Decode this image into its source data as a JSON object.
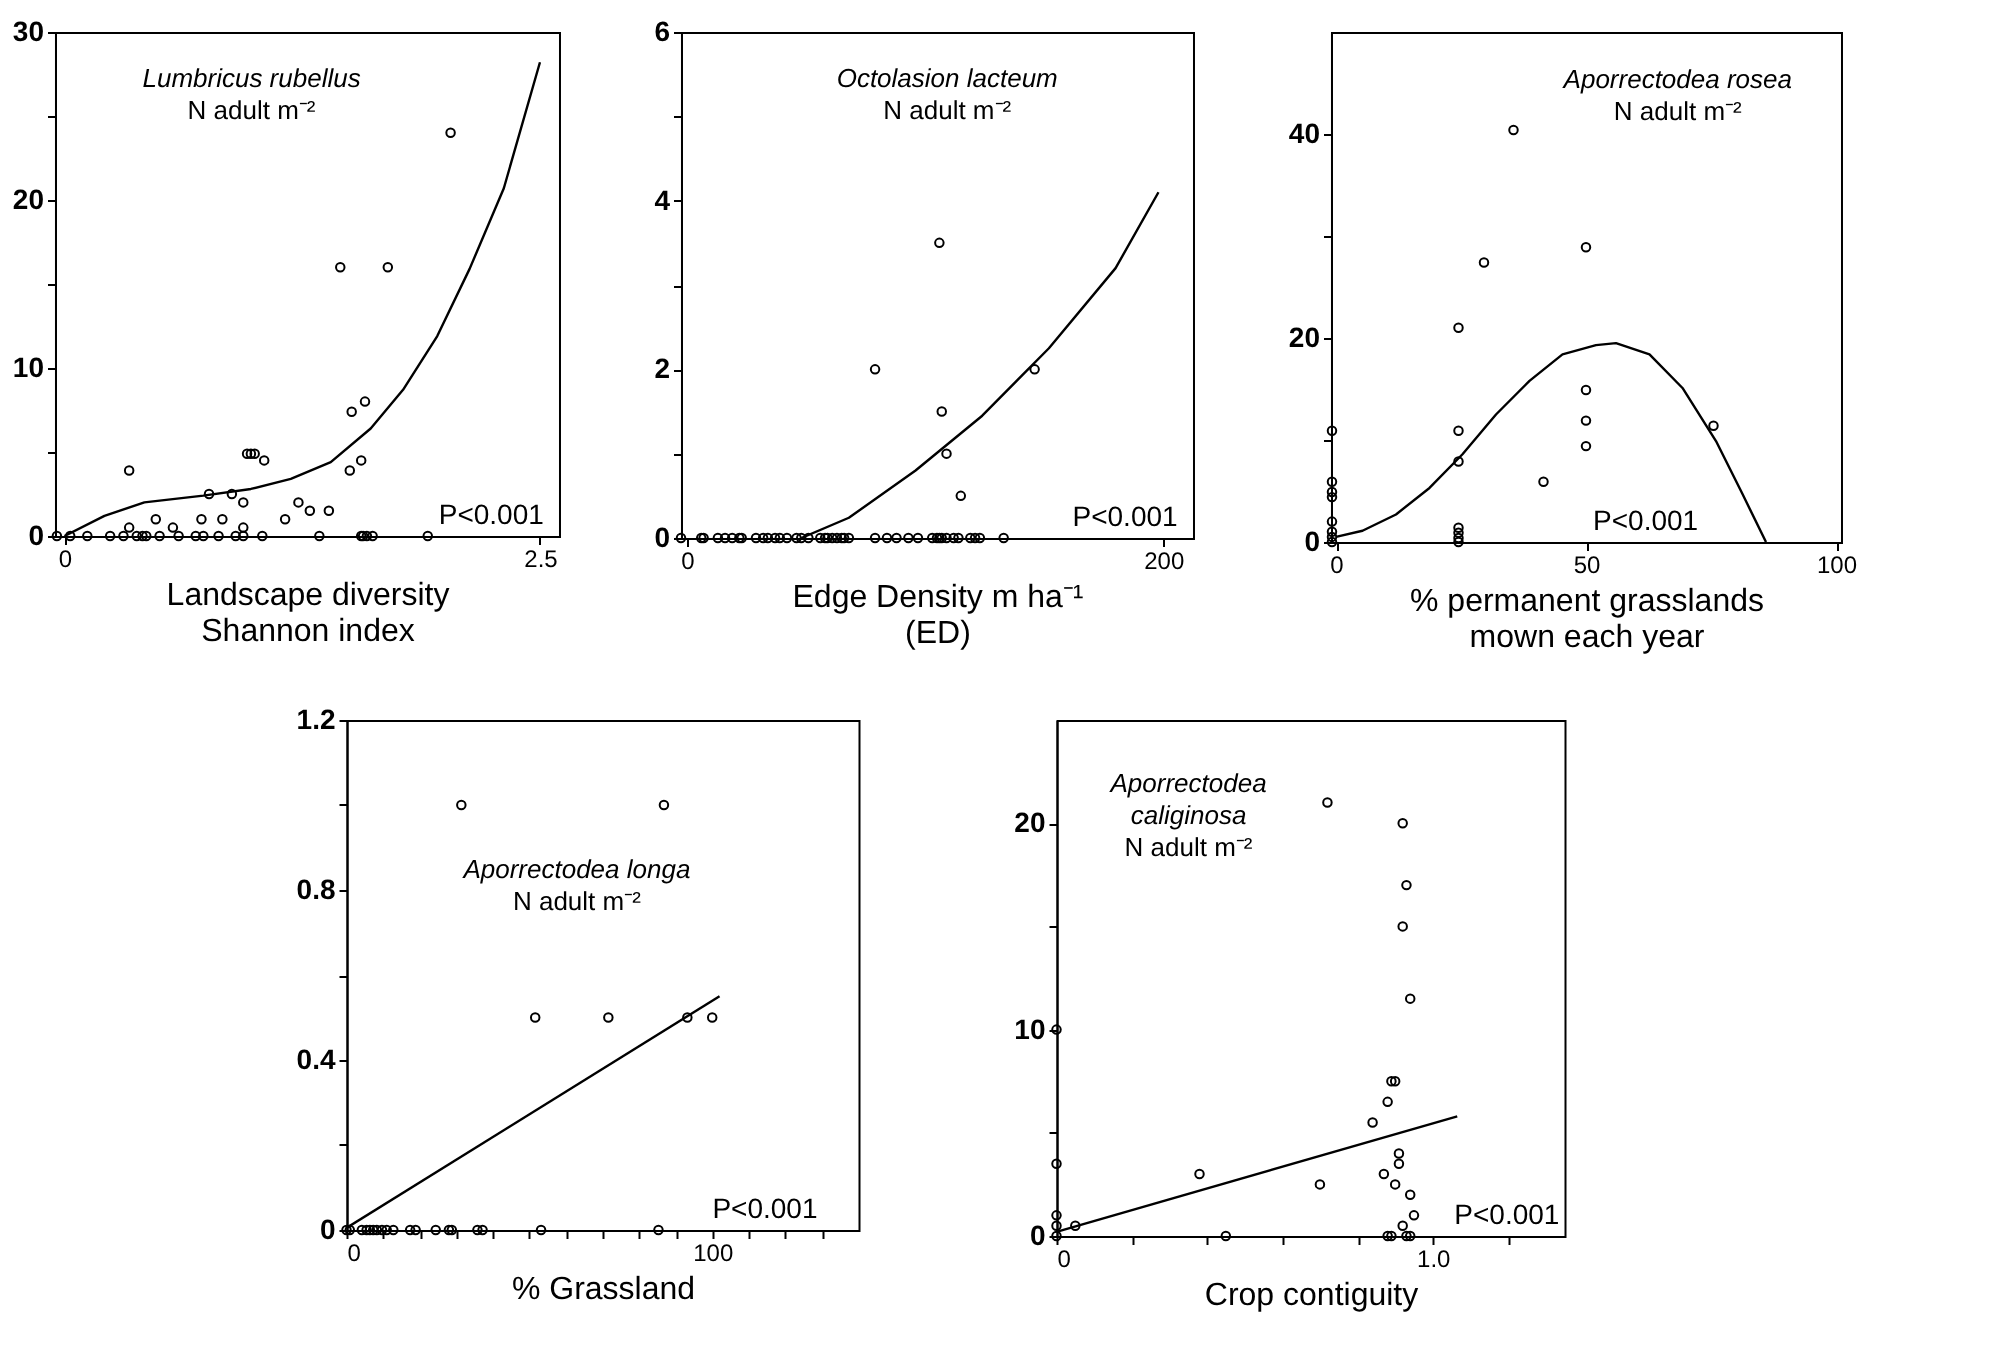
{
  "chart_data": [
    {
      "type": "scatter",
      "xlabel": "Landscape diversity\nShannon index",
      "xlim": [
        -0.05,
        2.6
      ],
      "xticks": [
        0,
        2.5
      ],
      "ylim": [
        0,
        30
      ],
      "yticks": [
        0,
        {
          "value": 5,
          "label": null
        },
        10,
        {
          "value": 15,
          "label": null
        },
        20,
        {
          "value": 25,
          "label": null
        },
        30
      ],
      "grid": false,
      "marker": "circle",
      "line_style": "solid",
      "annotations": [
        "Lumbricus rubellus",
        "N adult m⁻²",
        "P<0.001"
      ],
      "series": [
        {
          "color": "#000000",
          "x": [
            2.03,
            1.45,
            1.7,
            1.51,
            1.58,
            1.5,
            1.56,
            0.34,
            0.96,
            0.98,
            1.0,
            1.05,
            0.76,
            0.88,
            0.94,
            1.23,
            1.29,
            1.39,
            1.16,
            0.48,
            0.72,
            0.83,
            0.34,
            0.57,
            0.94,
            -0.04,
            0.03,
            0.12,
            0.24,
            0.31,
            0.38,
            0.41,
            0.43,
            0.5,
            0.6,
            0.69,
            0.73,
            0.81,
            0.9,
            0.94,
            1.04,
            1.34,
            1.56,
            1.57,
            1.59,
            1.62,
            1.91
          ],
          "values": [
            24,
            16,
            16,
            7.4,
            8,
            3.9,
            4.5,
            3.9,
            4.9,
            4.9,
            4.9,
            4.5,
            2.5,
            2.5,
            2,
            2,
            1.5,
            1.5,
            1,
            1,
            1,
            1,
            0.5,
            0.5,
            0.5,
            0,
            0,
            0,
            0,
            0,
            0,
            0,
            0,
            0,
            0,
            0,
            0,
            0,
            0,
            0,
            0,
            0,
            0,
            0,
            0,
            0,
            0
          ]
        },
        {
          "type": "line",
          "marker": "none",
          "color": "#000000",
          "x": [
            0,
            0.21,
            0.42,
            0.73,
            0.98,
            1.19,
            1.4,
            1.61,
            1.78,
            1.96,
            2.13,
            2.31,
            2.5
          ],
          "values": [
            0,
            1.2,
            2.0,
            2.4,
            2.8,
            3.4,
            4.4,
            6.4,
            8.7,
            11.9,
            15.9,
            20.7,
            28.2
          ]
        }
      ]
    },
    {
      "type": "scatter",
      "xlabel": "Edge Density m ha⁻¹\n(ED)",
      "xlim": [
        -2.5,
        212.5
      ],
      "xticks": [
        0,
        200
      ],
      "ylim": [
        0,
        6
      ],
      "yticks": [
        0,
        {
          "value": 1,
          "label": null
        },
        2,
        {
          "value": 3,
          "label": null
        },
        4,
        {
          "value": 5,
          "label": null
        },
        6
      ],
      "grid": false,
      "marker": "circle",
      "line_style": "solid",
      "annotations": [
        "Octolasion lacteum",
        "N adult m⁻²",
        "P<0.001"
      ],
      "series": [
        {
          "color": "#000000",
          "x": [
            106,
            79,
            146,
            107,
            109,
            115,
            -2.5,
            6,
            7,
            13,
            16,
            19,
            22,
            23,
            29,
            32,
            34,
            37,
            39,
            42,
            46,
            48,
            51,
            56,
            58,
            59,
            61,
            63,
            65,
            66,
            68,
            79,
            84,
            88,
            93,
            97,
            103,
            105,
            106,
            107,
            109,
            112,
            114,
            119,
            121,
            123,
            133
          ],
          "values": [
            3.5,
            2,
            2,
            1.5,
            1,
            0.5,
            0,
            0,
            0,
            0,
            0,
            0,
            0,
            0,
            0,
            0,
            0,
            0,
            0,
            0,
            0,
            0,
            0,
            0,
            0,
            0,
            0,
            0,
            0,
            0,
            0,
            0,
            0,
            0,
            0,
            0,
            0,
            0,
            0,
            0,
            0,
            0,
            0,
            0,
            0,
            0,
            0
          ]
        },
        {
          "type": "line",
          "marker": "none",
          "color": "#000000",
          "x": [
            48,
            68,
            96,
            124,
            152,
            180,
            198
          ],
          "values": [
            0,
            0.24,
            0.8,
            1.45,
            2.25,
            3.2,
            4.1
          ]
        }
      ]
    },
    {
      "type": "scatter",
      "xlabel": "% permanent grasslands\nmown each year",
      "xlim": [
        -1,
        101
      ],
      "xticks": [
        0,
        50,
        100
      ],
      "ylim": [
        0,
        50
      ],
      "yticks": [
        0,
        {
          "value": 10,
          "label": null
        },
        20,
        {
          "value": 30,
          "label": null
        },
        40
      ],
      "grid": false,
      "marker": "circle",
      "line_style": "solid",
      "annotations": [
        "Aporrectodea rosea",
        "N adult m⁻²",
        "P<0.001"
      ],
      "series": [
        {
          "color": "#000000",
          "x": [
            35.5,
            29.6,
            50,
            24.5,
            24.5,
            24.5,
            50,
            50,
            50,
            41.5,
            75.5,
            -0.8,
            -0.8,
            -0.8,
            -0.8,
            -0.8,
            -0.8,
            -0.8,
            -0.8,
            24.5,
            24.5,
            24.5,
            24.5
          ],
          "values": [
            40.4,
            27.4,
            28.9,
            21,
            10.9,
            7.9,
            14.9,
            11.9,
            9.4,
            5.9,
            11.4,
            10.9,
            5.9,
            4.9,
            4.4,
            2,
            1,
            0.5,
            0,
            1.4,
            0.9,
            0.4,
            0
          ]
        },
        {
          "type": "line",
          "marker": "none",
          "color": "#000000",
          "x": [
            0,
            5.3,
            12,
            18.7,
            25.3,
            32,
            38.7,
            45.3,
            52,
            56,
            62.7,
            69.3,
            76,
            81.3,
            86
          ],
          "values": [
            0.5,
            1.1,
            2.7,
            5.3,
            8.6,
            12.5,
            15.8,
            18.4,
            19.3,
            19.5,
            18.4,
            15.1,
            9.9,
            4.7,
            0
          ]
        }
      ]
    },
    {
      "type": "scatter",
      "xlabel": "% Grassland",
      "xlim": [
        0,
        140
      ],
      "xticks": [
        0,
        {
          "value": 10,
          "label": null
        },
        {
          "value": 20,
          "label": null
        },
        {
          "value": 30,
          "label": null
        },
        {
          "value": 40,
          "label": null
        },
        {
          "value": 50,
          "label": null
        },
        {
          "value": 60,
          "label": null
        },
        {
          "value": 70,
          "label": null
        },
        {
          "value": 80,
          "label": null
        },
        {
          "value": 90,
          "label": null
        },
        100,
        {
          "value": 110,
          "label": null
        },
        {
          "value": 120,
          "label": null
        },
        {
          "value": 130,
          "label": null
        }
      ],
      "ylim": [
        0,
        1.2
      ],
      "yticks": [
        0,
        {
          "value": 0.2,
          "label": null
        },
        0.4,
        {
          "value": 0.6,
          "label": null
        },
        0.8,
        {
          "value": 1.0,
          "label": null
        },
        1.2
      ],
      "grid": false,
      "marker": "circle",
      "line_style": "solid",
      "annotations": [
        "Aporrectodea longa",
        "N adult m⁻²",
        "P<0.001"
      ],
      "series": [
        {
          "color": "#000000",
          "x": [
            31.4,
            86.8,
            51.6,
            71.6,
            93.2,
            100,
            0,
            0.9,
            4.2,
            5.5,
            6.4,
            7.3,
            8.3,
            9.7,
            11,
            12.8,
            17.4,
            18.9,
            24.4,
            28,
            28.8,
            35.8,
            37.2,
            53.2,
            85.3
          ],
          "values": [
            1,
            1,
            0.5,
            0.5,
            0.5,
            0.5,
            0,
            0,
            0,
            0,
            0,
            0,
            0,
            0,
            0,
            0,
            0,
            0,
            0,
            0,
            0,
            0,
            0,
            0,
            0
          ]
        },
        {
          "type": "line",
          "marker": "none",
          "color": "#000000",
          "x": [
            0,
            102
          ],
          "values": [
            0.005,
            0.55
          ]
        }
      ]
    },
    {
      "type": "scatter",
      "xlabel": "Crop contiguity",
      "xlim": [
        0,
        1.35
      ],
      "xticks": [
        0,
        {
          "value": 0.2,
          "label": null
        },
        {
          "value": 0.4,
          "label": null
        },
        {
          "value": 0.6,
          "label": null
        },
        {
          "value": 0.8,
          "label": null
        },
        {
          "value": 1,
          "label": "1.0"
        },
        {
          "value": 1.2,
          "label": null
        }
      ],
      "ylim": [
        0,
        25
      ],
      "yticks": [
        0,
        {
          "value": 5,
          "label": null
        },
        10,
        {
          "value": 15,
          "label": null
        },
        20
      ],
      "grid": false,
      "marker": "circle",
      "line_style": "solid",
      "annotations": [
        "Aporrectodea",
        "caliginosa",
        "N adult m⁻²",
        "P<0.001"
      ],
      "series": [
        {
          "color": "#000000",
          "x": [
            0.72,
            0.92,
            0.93,
            0.92,
            0.94,
            0.89,
            0.9,
            0.88,
            0.84,
            0.38,
            0.7,
            0.87,
            0.91,
            0.91,
            0.9,
            0.94,
            0.95,
            0.92,
            0.05,
            0.45,
            0.88,
            0.89,
            0.93,
            0.94,
            0,
            0,
            0,
            0,
            0
          ],
          "values": [
            21,
            20,
            17,
            15,
            11.5,
            7.5,
            7.5,
            6.5,
            5.5,
            3,
            2.5,
            3,
            4,
            3.5,
            2.5,
            2,
            1,
            0.5,
            0.5,
            0,
            0,
            0,
            0,
            0,
            10,
            3.5,
            1,
            0.5,
            0
          ]
        },
        {
          "type": "line",
          "marker": "none",
          "color": "#000000",
          "x": [
            0,
            1.065
          ],
          "values": [
            0.2,
            5.8
          ]
        }
      ]
    }
  ]
}
